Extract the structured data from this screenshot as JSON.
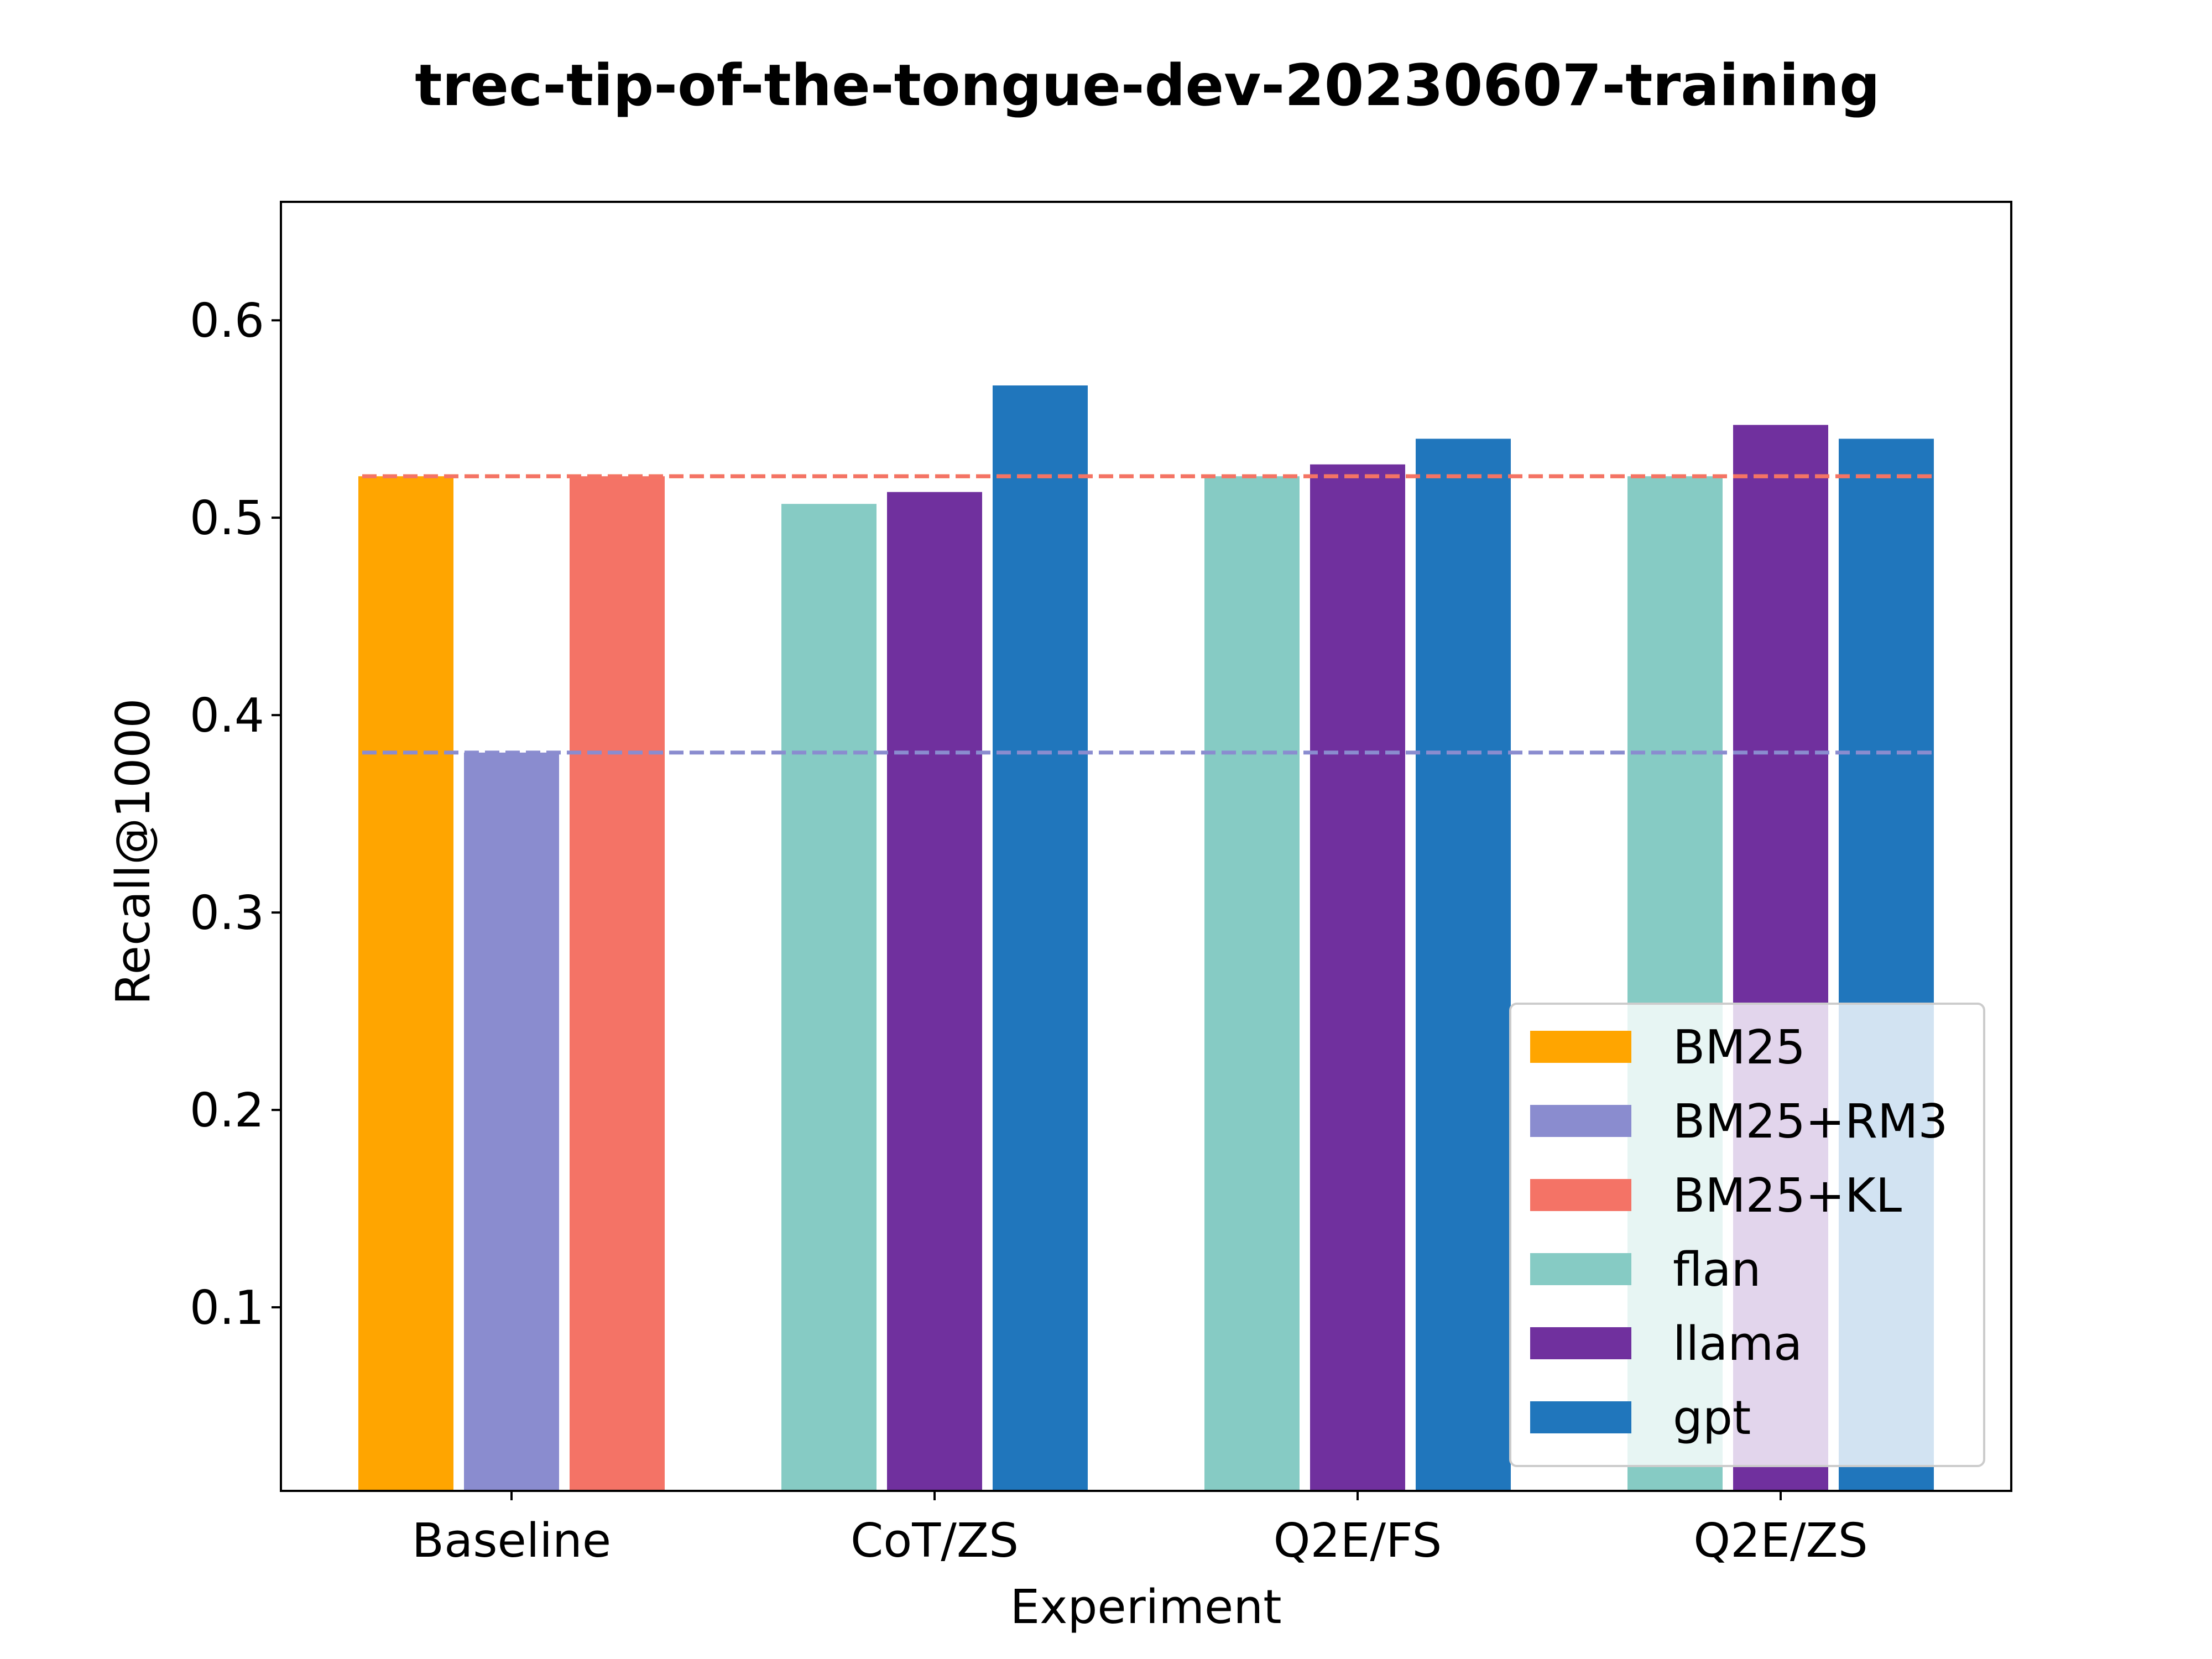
{
  "chart_data": {
    "type": "bar",
    "title": "trec-tip-of-the-tongue-dev-20230607-training",
    "xlabel": "Experiment",
    "ylabel": "Recall@1000",
    "categories": [
      "Baseline",
      "CoT/ZS",
      "Q2E/FS",
      "Q2E/ZS"
    ],
    "ylim": [
      0.007,
      0.66
    ],
    "yticks": [
      0.1,
      0.2,
      0.3,
      0.4,
      0.5,
      0.6
    ],
    "ytick_labels": [
      "0.1",
      "0.2",
      "0.3",
      "0.4",
      "0.5",
      "0.6"
    ],
    "grid": false,
    "legend_position": "bottom-right",
    "series": [
      {
        "name": "BM25",
        "color": "#ffa500",
        "values": [
          0.521,
          null,
          null,
          null
        ],
        "slot": 0
      },
      {
        "name": "BM25+RM3",
        "color": "#8a8ccf",
        "values": [
          0.381,
          null,
          null,
          null
        ],
        "slot": 1
      },
      {
        "name": "BM25+KL",
        "color": "#f47366",
        "values": [
          0.521,
          null,
          null,
          null
        ],
        "slot": 2
      },
      {
        "name": "flan",
        "color": "#86cbc4",
        "values": [
          null,
          0.507,
          0.521,
          0.521
        ],
        "slot": 0
      },
      {
        "name": "llama",
        "color": "#70309e",
        "values": [
          null,
          0.513,
          0.527,
          0.547
        ],
        "slot": 1
      },
      {
        "name": "gpt",
        "color": "#2076bc",
        "values": [
          null,
          0.567,
          0.54,
          0.54
        ],
        "slot": 2
      }
    ],
    "reference_lines": [
      {
        "name": "BM25",
        "value": 0.521,
        "color": "#ffa500",
        "style": "dashed"
      },
      {
        "name": "BM25+RM3",
        "value": 0.381,
        "color": "#8a8ccf",
        "style": "dashed"
      },
      {
        "name": "BM25+KL",
        "value": 0.521,
        "color": "#f47366",
        "style": "dashed"
      }
    ]
  }
}
